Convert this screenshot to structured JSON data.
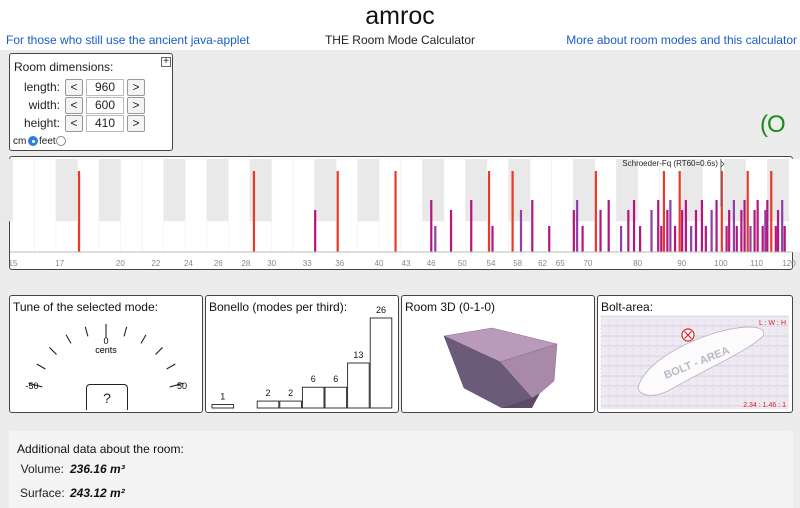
{
  "header": {
    "title": "amroc",
    "subtitle": "THE Room Mode Calculator",
    "left_link": "For those who still use the ancient java-applet",
    "right_link": "More about room modes and this calculator"
  },
  "room_dimensions": {
    "title": "Room dimensions:",
    "length_label": "length:",
    "width_label": "width:",
    "height_label": "height:",
    "length": "960",
    "width": "600",
    "height": "410",
    "decrement": "<",
    "increment": ">",
    "unit_cm": "cm",
    "unit_feet": "feet",
    "selected_unit": "cm",
    "toggle_symbol": "+"
  },
  "indicator": {
    "text": "(O",
    "color": "#1a8a1a"
  },
  "spectrum": {
    "schroeder_label": "Schroeder-Fq (RT60=0.6s)",
    "schroeder_hz": 100,
    "axis_min_hz": 15,
    "axis_max_hz": 120,
    "tick_labels": [
      15,
      17,
      20,
      22,
      24,
      26,
      28,
      30,
      33,
      36,
      40,
      43,
      46,
      50,
      54,
      58,
      62,
      65,
      70,
      80,
      90,
      100,
      110,
      120
    ],
    "axial_color": "#e8392b",
    "oblique_color": "#b5167d",
    "tangential_color": "#8e3fa8",
    "axial_modes_hz": [
      17.9,
      28.6,
      35.8,
      41.8,
      53.7,
      57.2,
      71.5,
      85.8,
      89.5,
      100.2,
      107.4,
      114.4
    ],
    "other_modes_hz": [
      33.7,
      46.0,
      46.5,
      48.5,
      51.2,
      54.2,
      58.5,
      60.3,
      63.1,
      67.4,
      68.0,
      69.0,
      72.4,
      74.0,
      76.5,
      78.0,
      79.2,
      80.5,
      83.0,
      84.5,
      85.2,
      86.6,
      87.3,
      88.4,
      90.1,
      91.0,
      92.3,
      93.5,
      95.0,
      96.0,
      97.5,
      98.8,
      101.5,
      102.2,
      103.5,
      104.3,
      105.6,
      106.5,
      108.2,
      109.4,
      110.3,
      111.8,
      112.6,
      113.2,
      115.8,
      116.5,
      117.8,
      118.6
    ]
  },
  "tune": {
    "title": "Tune of the selected mode:",
    "center_label": "0",
    "unit_label": "cents",
    "min_label": "-50",
    "max_label": "50",
    "value": "?"
  },
  "bonello": {
    "title": "Bonello (modes per third):",
    "values": [
      1,
      0,
      2,
      2,
      6,
      6,
      13,
      26
    ]
  },
  "room3d": {
    "title": "Room 3D (0-1-0)"
  },
  "bolt": {
    "title": "Bolt-area:",
    "corner_label": "L : W : H",
    "ratio": "2.34 : 1.46 : 1",
    "area_label": "BOLT - AREA",
    "mark_color": "#d42424"
  },
  "additional": {
    "title": "Additional data about the room:",
    "volume_label": "Volume:",
    "volume_value": "236.16 m³",
    "surface_label": "Surface:",
    "surface_value": "243.12 m²"
  }
}
